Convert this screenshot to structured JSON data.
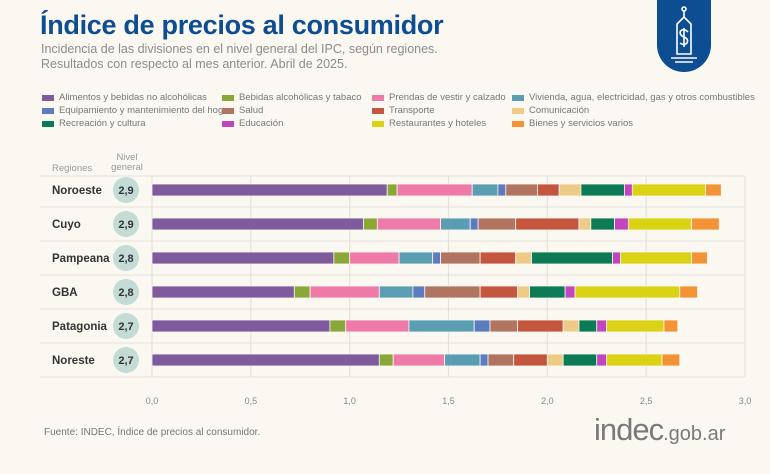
{
  "header": {
    "title": "Índice de precios al consumidor",
    "subtitle_1": "Incidencia de las divisiones en el nivel general del IPC, según regiones.",
    "subtitle_2": "Resultados con respecto al mes anterior. Abril de 2025.",
    "badge_icon": "price-tag-dollar-icon",
    "badge_color": "#0d4d92"
  },
  "chart_data": {
    "type": "bar",
    "orientation": "horizontal-stacked",
    "column_headers": {
      "regions": "Regiones",
      "level": "Nivel general"
    },
    "categories": [
      "Noroeste",
      "Cuyo",
      "Pampeana",
      "GBA",
      "Patagonia",
      "Noreste"
    ],
    "nivel_general": [
      "2,9",
      "2,9",
      "2,8",
      "2,8",
      "2,7",
      "2,7"
    ],
    "xlim": [
      0,
      3.0
    ],
    "xticks": [
      "0,0",
      "0,5",
      "1,0",
      "1,5",
      "2,0",
      "2,5",
      "3,0"
    ],
    "grid": "vertical",
    "legend_placement": "top",
    "series": [
      {
        "name": "Alimentos y bebidas no alcohólicas",
        "color": "#7f5a9c",
        "values": [
          1.19,
          1.07,
          0.92,
          0.72,
          0.9,
          1.15
        ]
      },
      {
        "name": "Bebidas alcohólicas y tabaco",
        "color": "#8aa83a",
        "values": [
          0.05,
          0.07,
          0.08,
          0.08,
          0.08,
          0.07
        ]
      },
      {
        "name": "Prendas de vestir y calzado",
        "color": "#ee7aa8",
        "values": [
          0.38,
          0.32,
          0.25,
          0.35,
          0.32,
          0.26
        ]
      },
      {
        "name": "Vivienda, agua, electricidad, gas y otros combustibles",
        "color": "#5b9db3",
        "values": [
          0.13,
          0.15,
          0.17,
          0.17,
          0.33,
          0.18
        ]
      },
      {
        "name": "Equipamiento y mantenimiento del hogar",
        "color": "#5d7bbf",
        "values": [
          0.04,
          0.04,
          0.04,
          0.06,
          0.08,
          0.04
        ]
      },
      {
        "name": "Salud",
        "color": "#b07461",
        "values": [
          0.16,
          0.19,
          0.2,
          0.28,
          0.14,
          0.13
        ]
      },
      {
        "name": "Transporte",
        "color": "#c4553f",
        "values": [
          0.11,
          0.32,
          0.18,
          0.19,
          0.23,
          0.17
        ]
      },
      {
        "name": "Comunicación",
        "color": "#edca86",
        "values": [
          0.11,
          0.06,
          0.08,
          0.06,
          0.08,
          0.08
        ]
      },
      {
        "name": "Recreación y cultura",
        "color": "#0b7a55",
        "values": [
          0.22,
          0.12,
          0.41,
          0.18,
          0.09,
          0.17
        ]
      },
      {
        "name": "Educación",
        "color": "#c245c0",
        "values": [
          0.04,
          0.07,
          0.04,
          0.05,
          0.05,
          0.05
        ]
      },
      {
        "name": "Restaurantes y hoteles",
        "color": "#dbd214",
        "values": [
          0.37,
          0.32,
          0.36,
          0.53,
          0.29,
          0.28
        ]
      },
      {
        "name": "Bienes y servicios varios",
        "color": "#f39335",
        "values": [
          0.08,
          0.14,
          0.08,
          0.09,
          0.07,
          0.09
        ]
      }
    ]
  },
  "footer": {
    "source": "Fuente: INDEC, Índice de precios al consumidor.",
    "logo_main": "indec",
    "logo_suffix": ".gob.ar"
  }
}
